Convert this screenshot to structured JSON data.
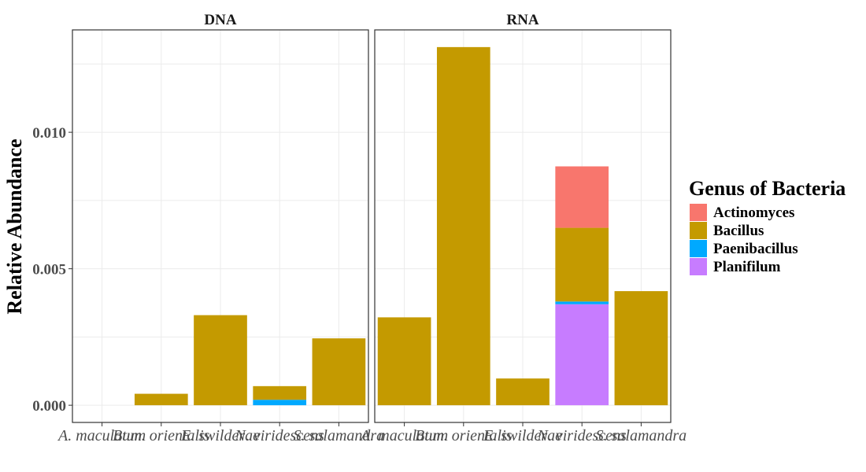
{
  "chart_data": {
    "type": "bar",
    "stacked": true,
    "ylabel": "Relative Abundance",
    "xlabel": "",
    "ylim": [
      -0.00063,
      0.01375
    ],
    "y_ticks": [
      0.0,
      0.005,
      0.01
    ],
    "y_tick_labels": [
      "0.000",
      "0.005",
      "0.010"
    ],
    "grid": true,
    "categories": [
      "A. maculatum",
      "Bum. orientalis",
      "E. swilderae",
      "N. viridescens",
      "S. salamandra"
    ],
    "genera": [
      "Actinomyces",
      "Bacillus",
      "Paenibacillus",
      "Planifilum"
    ],
    "colors": {
      "Actinomyces": "#F8766D",
      "Bacillus": "#C49A00",
      "Paenibacillus": "#00A9FF",
      "Planifilum": "#C77CFF"
    },
    "legend": {
      "title": "Genus of Bacteria",
      "position": "right"
    },
    "panels": [
      {
        "title": "DNA",
        "series": [
          {
            "name": "Planifilum",
            "values": [
              0,
              0,
              0,
              0,
              0
            ]
          },
          {
            "name": "Paenibacillus",
            "values": [
              0,
              0,
              0,
              0.0002,
              0
            ]
          },
          {
            "name": "Bacillus",
            "values": [
              0,
              0.00042,
              0.0033,
              0.0005,
              0.00245
            ]
          },
          {
            "name": "Actinomyces",
            "values": [
              0,
              0,
              0,
              0,
              0
            ]
          }
        ]
      },
      {
        "title": "RNA",
        "series": [
          {
            "name": "Planifilum",
            "values": [
              0,
              0,
              0,
              0.0037,
              0
            ]
          },
          {
            "name": "Paenibacillus",
            "values": [
              0,
              0,
              0,
              0.0001,
              0
            ]
          },
          {
            "name": "Bacillus",
            "values": [
              0.00322,
              0.01312,
              0.00098,
              0.0027,
              0.00418
            ]
          },
          {
            "name": "Actinomyces",
            "values": [
              0,
              0,
              0,
              0.00225,
              0
            ]
          }
        ]
      }
    ]
  }
}
